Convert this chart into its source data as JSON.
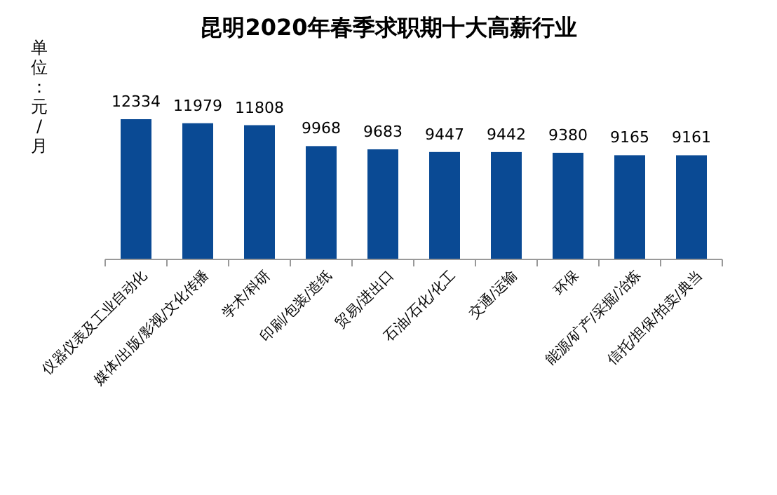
{
  "chart_data": {
    "type": "bar",
    "title": "昆明2020年春季求职期十大高薪行业",
    "ylabel": "单位：元/月",
    "categories": [
      "仪器仪表及工业自动化",
      "媒体/出版/影视/文化传播",
      "学术/科研",
      "印刷/包装/造纸",
      "贸易/进出口",
      "石油/石化/化工",
      "交通/运输",
      "环保",
      "能源/矿产/采掘/冶炼",
      "信托/担保/拍卖/典当"
    ],
    "values": [
      12334,
      11979,
      11808,
      9968,
      9683,
      9447,
      9442,
      9380,
      9165,
      9161
    ],
    "color": "#0a4a94",
    "data_labels": true
  }
}
